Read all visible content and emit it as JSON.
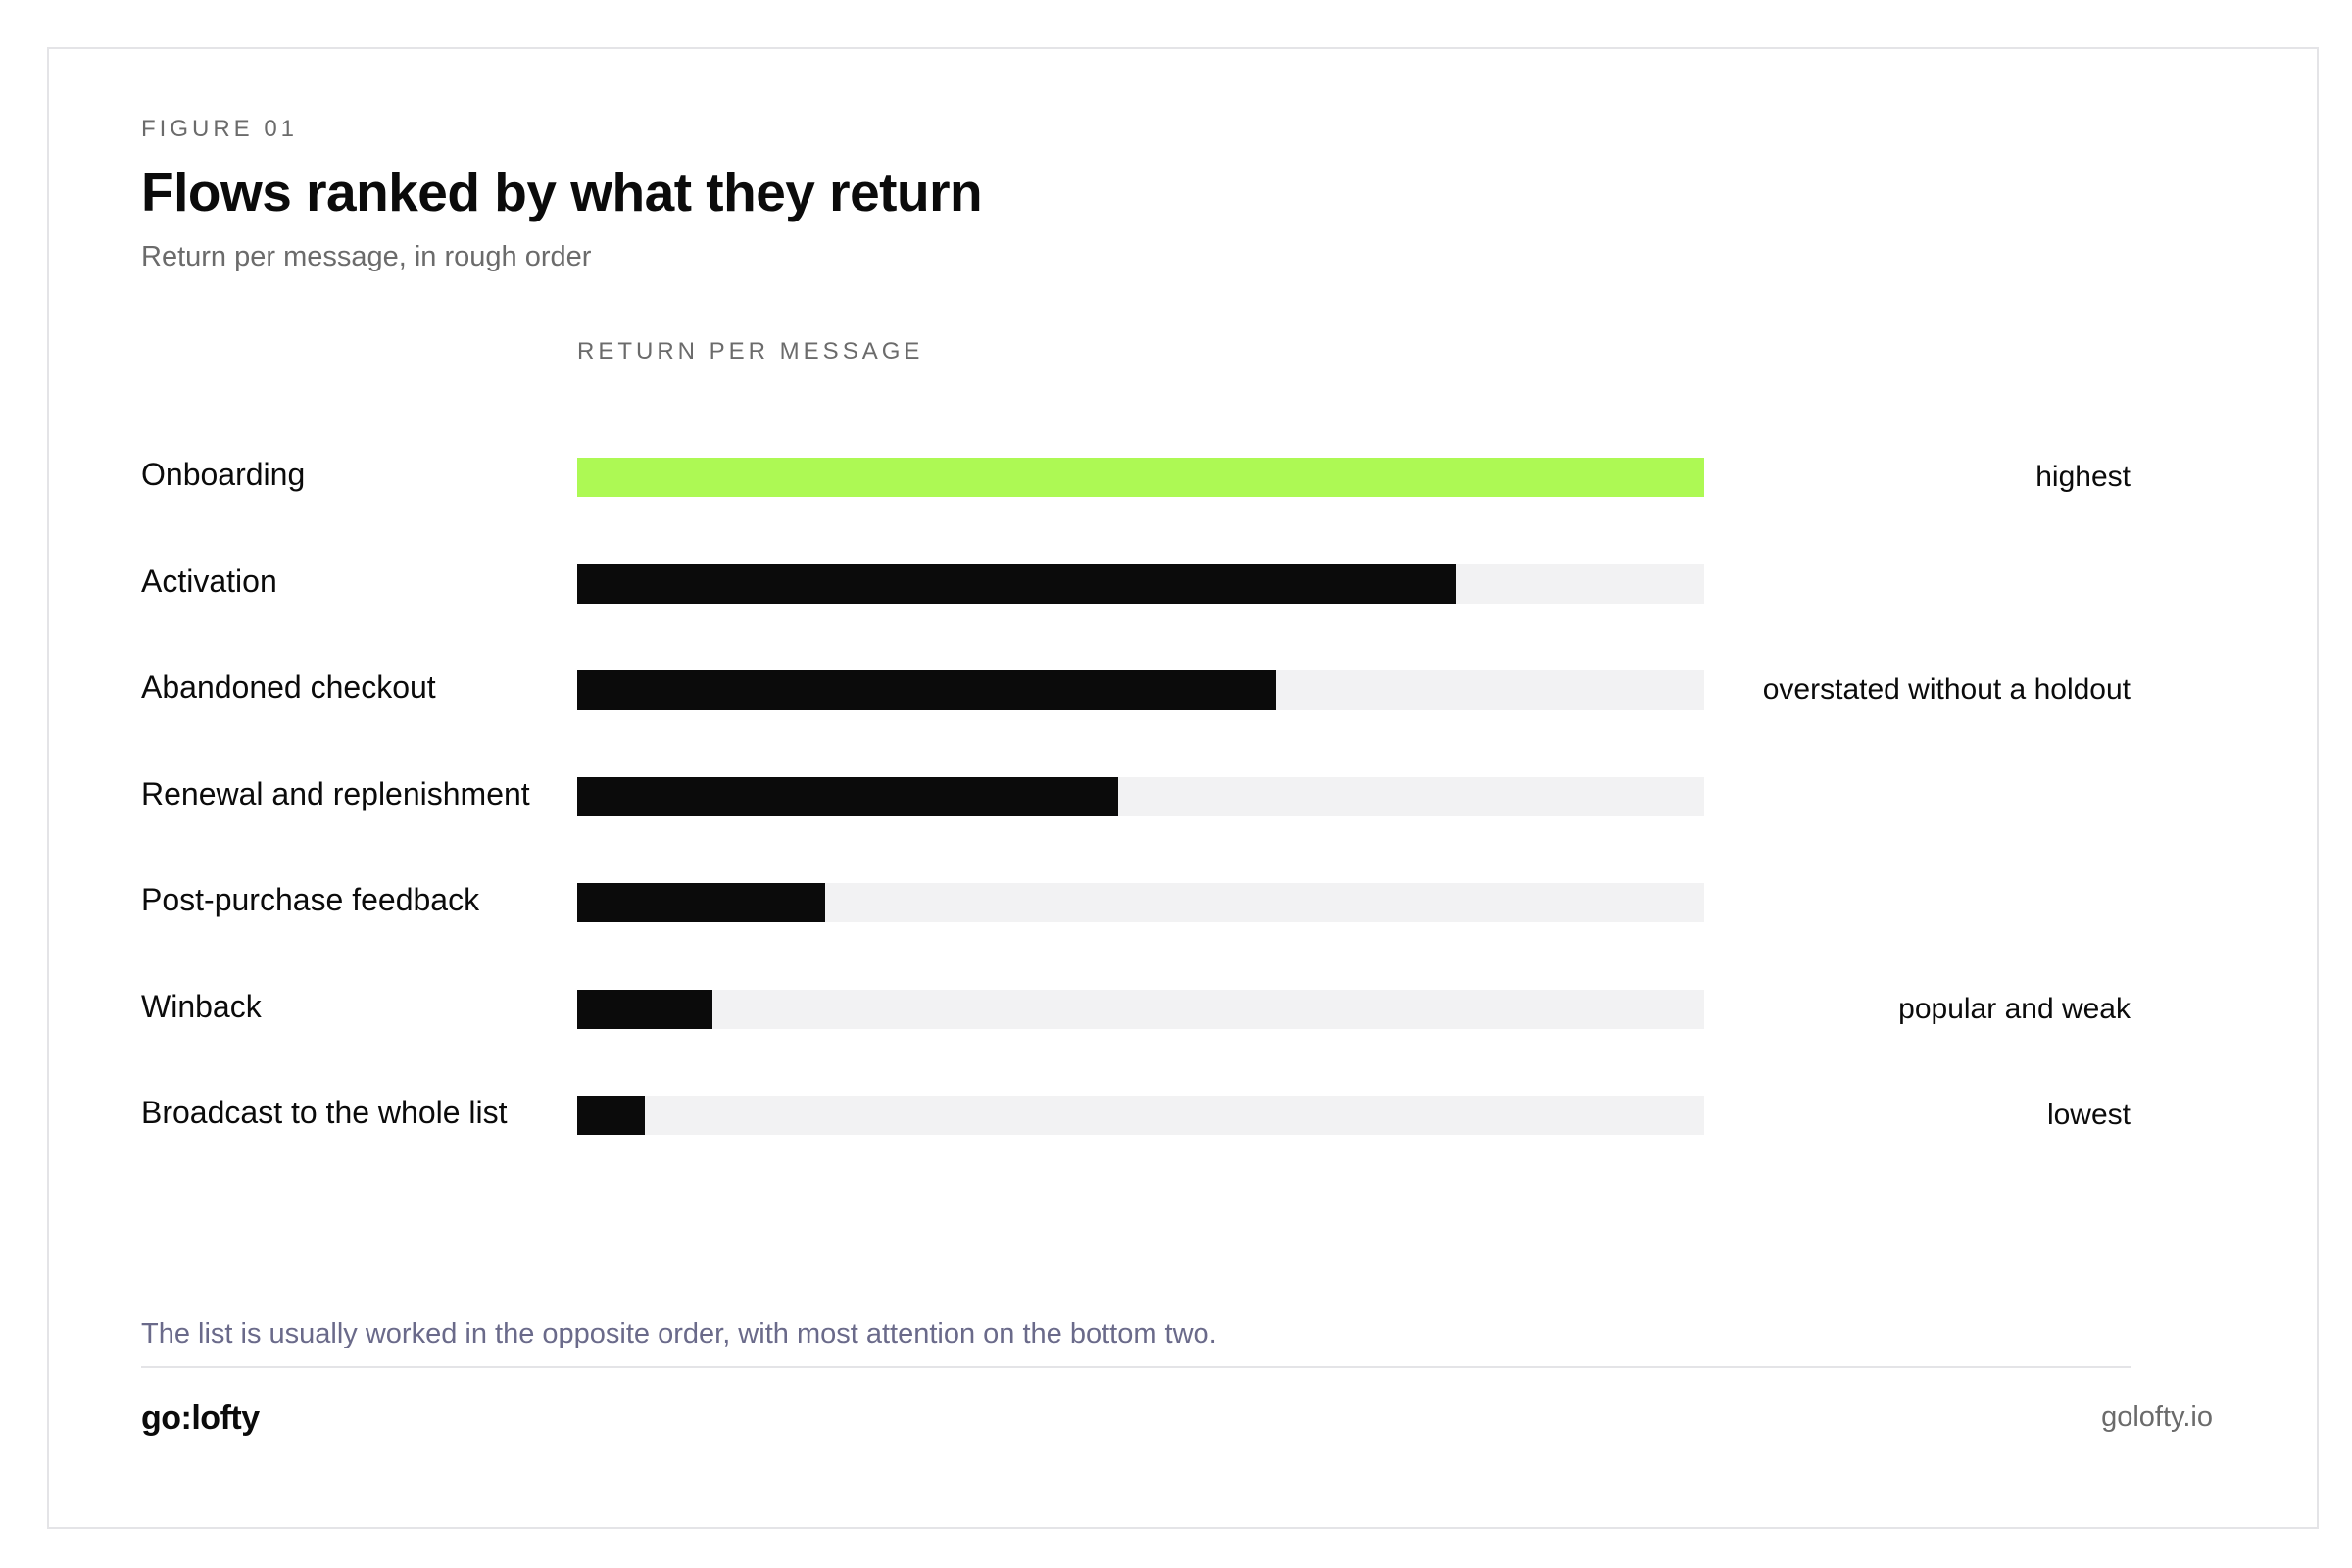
{
  "figure": {
    "eyebrow": "FIGURE 01",
    "title": "Flows ranked by what they return",
    "subtitle": "Return per message, in rough order"
  },
  "chart_data": {
    "type": "bar",
    "orientation": "horizontal",
    "title": "Flows ranked by what they return",
    "subtitle": "Return per message, in rough order",
    "xlabel": "RETURN PER MESSAGE",
    "ylabel": "",
    "xlim": [
      0,
      1
    ],
    "grid": false,
    "categories": [
      "Onboarding",
      "Activation",
      "Abandoned checkout",
      "Renewal and replenishment",
      "Post-purchase feedback",
      "Winback",
      "Broadcast to the whole list"
    ],
    "values": [
      1.0,
      0.78,
      0.62,
      0.48,
      0.22,
      0.12,
      0.06
    ],
    "annotations": [
      "highest",
      "",
      "overstated without a holdout",
      "",
      "",
      "popular and weak",
      "lowest"
    ],
    "colors": [
      "#adf954",
      "#0b0b0b",
      "#0b0b0b",
      "#0b0b0b",
      "#0b0b0b",
      "#0b0b0b",
      "#0b0b0b"
    ],
    "track_color": "#f2f2f3"
  },
  "footnote": "The list is usually worked in the opposite order, with most attention on the bottom two.",
  "footer": {
    "brand": "go:lofty",
    "site": "golofty.io"
  }
}
